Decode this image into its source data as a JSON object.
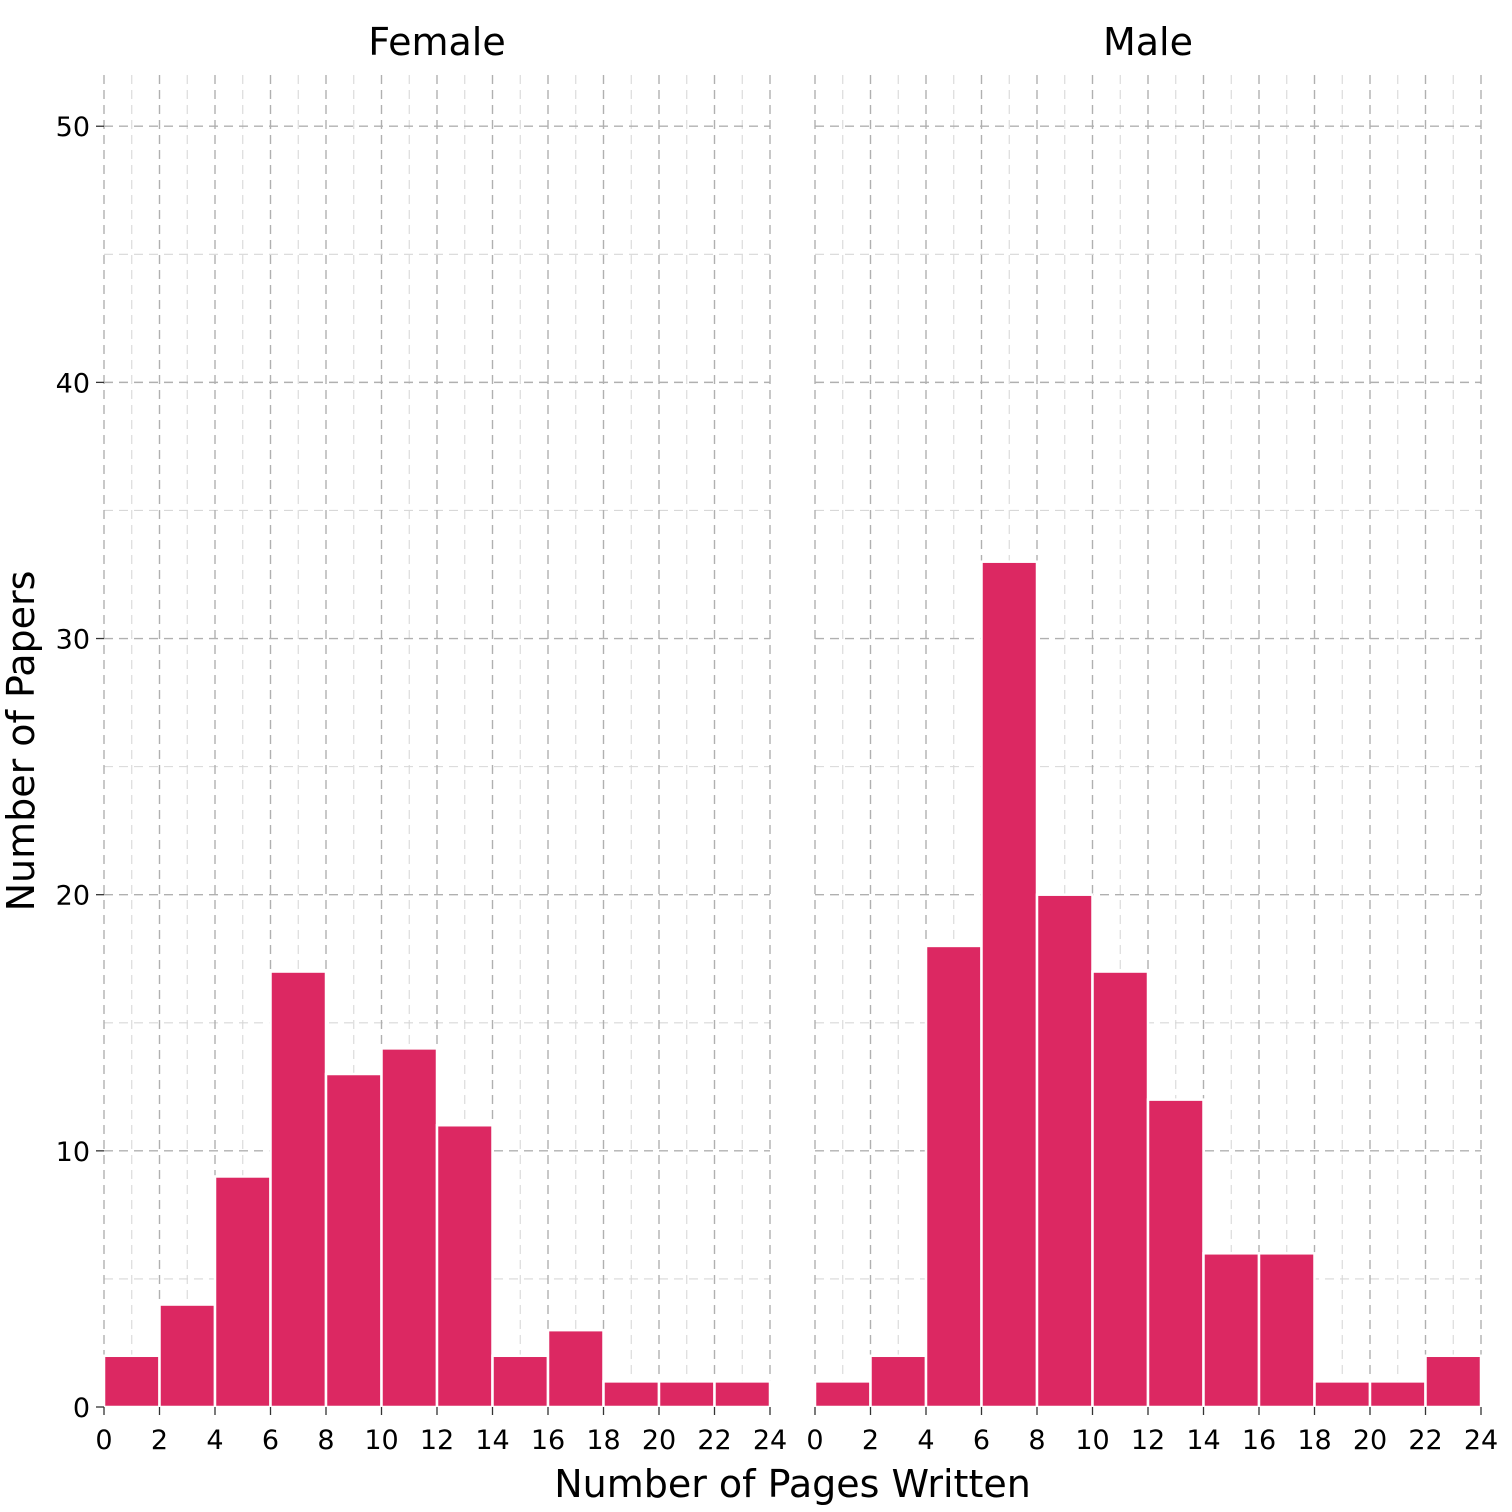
{
  "chart_data": {
    "type": "bar",
    "subtype": "faceted-histogram",
    "xlabel": "Number of Pages Written",
    "ylabel": "Number of Papers",
    "xlim": [
      0,
      24
    ],
    "ylim": [
      0,
      52
    ],
    "x_ticks": [
      0,
      2,
      4,
      6,
      8,
      10,
      12,
      14,
      16,
      18,
      20,
      22,
      24
    ],
    "y_ticks": [
      0,
      10,
      20,
      30,
      40,
      50
    ],
    "grid": true,
    "bar_color": "#dc2862",
    "bin_width": 2,
    "bin_starts": [
      0,
      2,
      4,
      6,
      8,
      10,
      12,
      14,
      16,
      18,
      20,
      22
    ],
    "facets": [
      {
        "label": "Female",
        "values": [
          2,
          4,
          9,
          17,
          13,
          14,
          11,
          2,
          3,
          1,
          1,
          1
        ]
      },
      {
        "label": "Male",
        "values": [
          1,
          2,
          18,
          33,
          20,
          17,
          12,
          6,
          6,
          1,
          1,
          2
        ]
      }
    ]
  }
}
